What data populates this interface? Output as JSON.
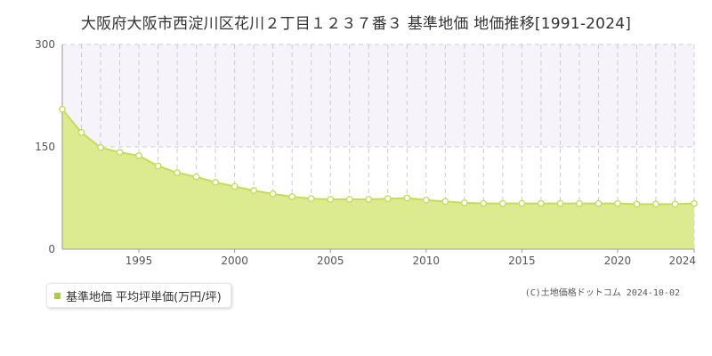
{
  "title": "大阪府大阪市西淀川区花川２丁目１２３７番３ 基準地価 地価推移[1991-2024]",
  "legend_label": "基準地価 平均坪単価(万円/坪)",
  "copyright": "(C)土地価格ドットコム 2024-10-02",
  "colors": {
    "fill": "#dceb8f",
    "line": "#c3dd5a",
    "point_fill": "#ffffff",
    "grid": "#cccccc",
    "band": "#f7f3fa",
    "axis": "#999999"
  },
  "chart_data": {
    "type": "area",
    "title": "大阪府大阪市西淀川区花川２丁目１２３７番３ 基準地価 地価推移[1991-2024]",
    "xlim": [
      1991,
      2024
    ],
    "ylim": [
      0,
      300
    ],
    "y_ticks": [
      0,
      150,
      300
    ],
    "x_ticks": [
      1995,
      2000,
      2005,
      2010,
      2015,
      2020,
      2024
    ],
    "grid": true,
    "legend_position": "bottom-left",
    "series": [
      {
        "name": "基準地価 平均坪単価(万円/坪)",
        "x": [
          1991,
          1992,
          1993,
          1994,
          1995,
          1996,
          1997,
          1998,
          1999,
          2000,
          2001,
          2002,
          2003,
          2004,
          2005,
          2006,
          2007,
          2008,
          2009,
          2010,
          2011,
          2012,
          2013,
          2014,
          2015,
          2016,
          2017,
          2018,
          2019,
          2020,
          2021,
          2022,
          2023,
          2024
        ],
        "y": [
          205,
          171,
          149,
          142,
          137,
          122,
          112,
          106,
          98,
          92,
          86,
          81,
          77,
          74,
          73,
          73,
          73,
          74,
          75,
          72,
          70,
          68,
          67,
          67,
          67,
          67,
          67,
          67,
          67,
          67,
          66,
          66,
          66,
          67
        ]
      }
    ]
  }
}
